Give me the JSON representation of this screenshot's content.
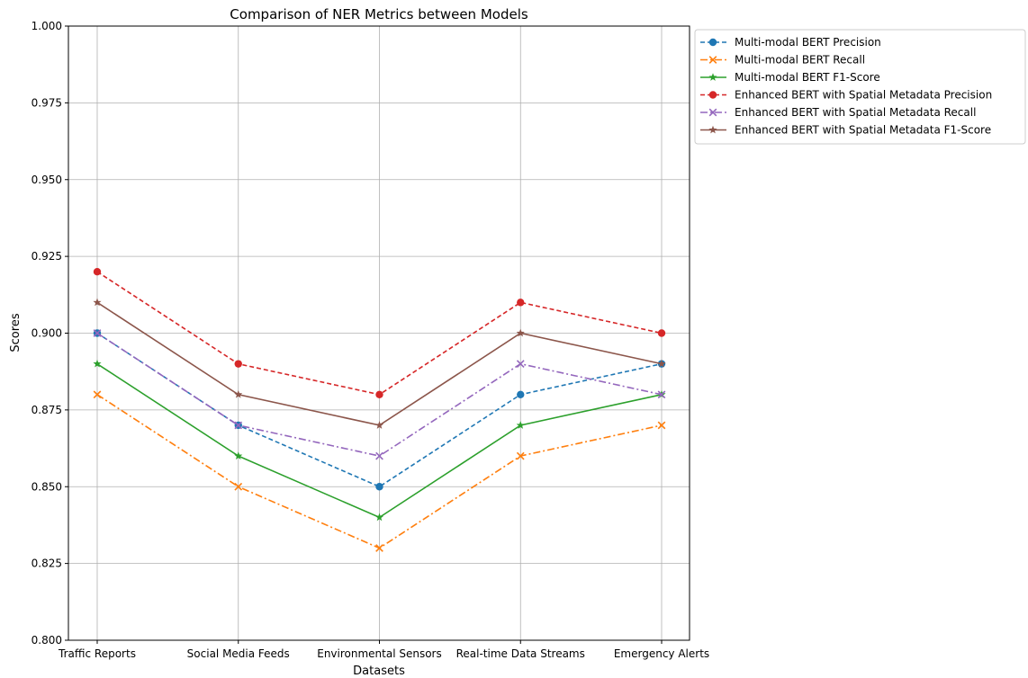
{
  "chart_data": {
    "type": "line",
    "title": "Comparison of NER Metrics between Models",
    "xlabel": "Datasets",
    "ylabel": "Scores",
    "categories": [
      "Traffic Reports",
      "Social Media Feeds",
      "Environmental Sensors",
      "Real-time Data Streams",
      "Emergency Alerts"
    ],
    "ylim": [
      0.8,
      1.0
    ],
    "yticks": [
      "0.800",
      "0.825",
      "0.850",
      "0.875",
      "0.900",
      "0.925",
      "0.950",
      "0.975",
      "1.000"
    ],
    "grid": true,
    "legend_position": "outside-top-right",
    "series": [
      {
        "name": "Multi-modal BERT Precision",
        "values": [
          0.9,
          0.87,
          0.85,
          0.88,
          0.89
        ],
        "color": "#1f77b4",
        "linestyle": "dashed",
        "marker": "circle"
      },
      {
        "name": "Multi-modal BERT Recall",
        "values": [
          0.88,
          0.85,
          0.83,
          0.86,
          0.87
        ],
        "color": "#ff7f0e",
        "linestyle": "dashdot",
        "marker": "x"
      },
      {
        "name": "Multi-modal BERT F1-Score",
        "values": [
          0.89,
          0.86,
          0.84,
          0.87,
          0.88
        ],
        "color": "#2ca02c",
        "linestyle": "solid",
        "marker": "star"
      },
      {
        "name": "Enhanced BERT with Spatial Metadata Precision",
        "values": [
          0.92,
          0.89,
          0.88,
          0.91,
          0.9
        ],
        "color": "#d62728",
        "linestyle": "dashed",
        "marker": "circle"
      },
      {
        "name": "Enhanced BERT with Spatial Metadata Recall",
        "values": [
          0.9,
          0.87,
          0.86,
          0.89,
          0.88
        ],
        "color": "#9467bd",
        "linestyle": "dashdot",
        "marker": "x"
      },
      {
        "name": "Enhanced BERT with Spatial Metadata F1-Score",
        "values": [
          0.91,
          0.88,
          0.87,
          0.9,
          0.89
        ],
        "color": "#8c564b",
        "linestyle": "solid",
        "marker": "star"
      }
    ]
  }
}
